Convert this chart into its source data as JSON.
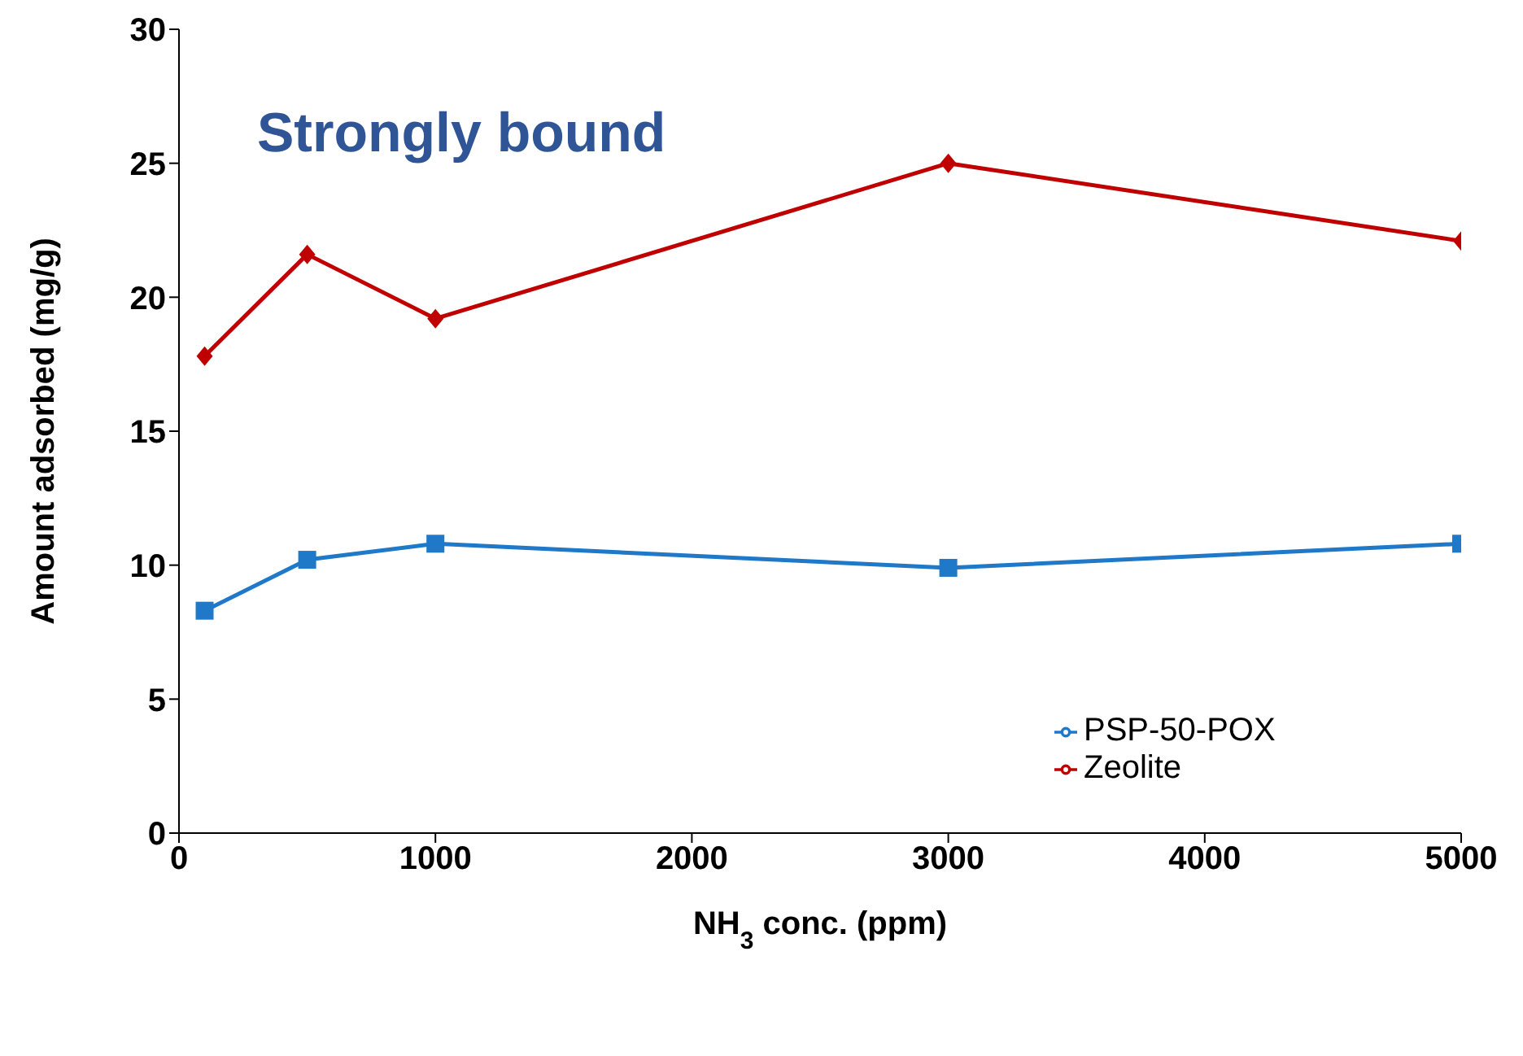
{
  "chart_data": {
    "type": "line",
    "xlabel": "NH$_{3}$ conc. (ppm)",
    "ylabel": "Amount adsorbed (mg/g)",
    "annotations": [
      "Strongly bound"
    ],
    "x": [
      100,
      500,
      1000,
      3000,
      5000
    ],
    "series": [
      {
        "name": "PSP-50-POX",
        "color": "#1f78c8",
        "marker": "square",
        "values": [
          8.3,
          10.2,
          10.8,
          9.9,
          10.8
        ]
      },
      {
        "name": "Zeolite",
        "color": "#c00000",
        "marker": "diamond",
        "values": [
          17.8,
          21.6,
          19.2,
          25.0,
          22.1
        ]
      }
    ],
    "xlim": [
      0,
      5000
    ],
    "xticks": [
      0,
      1000,
      2000,
      3000,
      4000,
      5000
    ],
    "ylim": [
      0,
      30
    ],
    "yticks": [
      0,
      5,
      10,
      15,
      20,
      25,
      30
    ],
    "grid": false,
    "legend": "bottom right",
    "line_style": "solid"
  }
}
